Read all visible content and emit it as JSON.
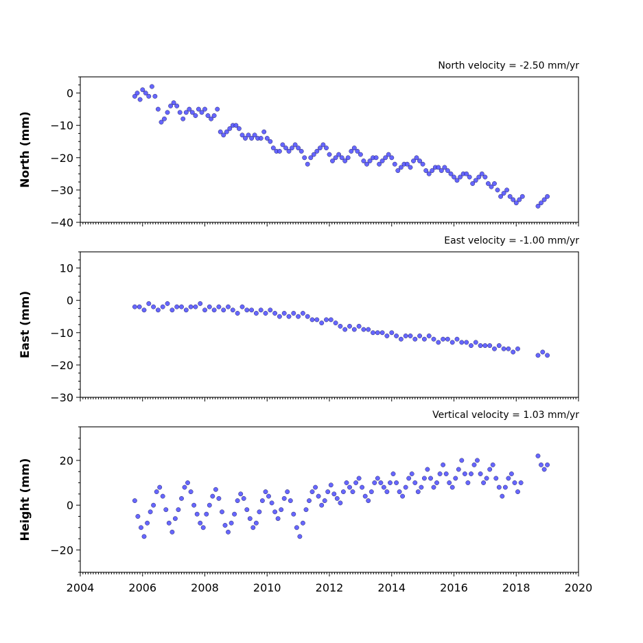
{
  "chart_data": [
    {
      "type": "scatter",
      "title": "",
      "annotation": "North velocity = -2.50 mm/yr",
      "xlabel": "",
      "ylabel": "North (mm)",
      "xlim": [
        2004,
        2020
      ],
      "ylim": [
        -40,
        5
      ],
      "yticks": [
        0,
        -10,
        -20,
        -30,
        -40
      ],
      "y_tick_labels": [
        "0",
        "−10",
        "−20",
        "−30",
        "−40"
      ],
      "marker_color": "#5555ff",
      "series": [
        {
          "x": [
            2005.75,
            2005.83,
            2005.92,
            2006.0,
            2006.1,
            2006.2,
            2006.3,
            2006.4,
            2006.5,
            2006.6,
            2006.7,
            2006.8,
            2006.9,
            2007.0,
            2007.1,
            2007.2,
            2007.3,
            2007.4,
            2007.5,
            2007.6,
            2007.7,
            2007.8,
            2007.9,
            2008.0,
            2008.1,
            2008.2,
            2008.3,
            2008.4,
            2008.5,
            2008.6,
            2008.7,
            2008.8,
            2008.9,
            2009.0,
            2009.1,
            2009.2,
            2009.3,
            2009.4,
            2009.5,
            2009.6,
            2009.7,
            2009.8,
            2009.9,
            2010.0,
            2010.1,
            2010.2,
            2010.3,
            2010.4,
            2010.5,
            2010.6,
            2010.7,
            2010.8,
            2010.9,
            2011.0,
            2011.1,
            2011.2,
            2011.3,
            2011.4,
            2011.5,
            2011.6,
            2011.7,
            2011.8,
            2011.9,
            2012.0,
            2012.1,
            2012.2,
            2012.3,
            2012.4,
            2012.5,
            2012.6,
            2012.7,
            2012.8,
            2012.9,
            2013.0,
            2013.1,
            2013.2,
            2013.3,
            2013.4,
            2013.5,
            2013.6,
            2013.7,
            2013.8,
            2013.9,
            2014.0,
            2014.1,
            2014.2,
            2014.3,
            2014.4,
            2014.5,
            2014.6,
            2014.7,
            2014.8,
            2014.9,
            2015.0,
            2015.1,
            2015.2,
            2015.3,
            2015.4,
            2015.5,
            2015.6,
            2015.7,
            2015.8,
            2015.9,
            2016.0,
            2016.1,
            2016.2,
            2016.3,
            2016.4,
            2016.5,
            2016.6,
            2016.7,
            2016.8,
            2016.9,
            2017.0,
            2017.1,
            2017.2,
            2017.3,
            2017.4,
            2017.5,
            2017.6,
            2017.7,
            2017.8,
            2017.9,
            2018.0,
            2018.1,
            2018.2,
            2018.7,
            2018.8,
            2018.9,
            2019.0
          ],
          "y": [
            -1,
            0,
            -2,
            1,
            0,
            -1,
            2,
            -1,
            -5,
            -9,
            -8,
            -6,
            -4,
            -3,
            -4,
            -6,
            -8,
            -6,
            -5,
            -6,
            -7,
            -5,
            -6,
            -5,
            -7,
            -8,
            -7,
            -5,
            -12,
            -13,
            -12,
            -11,
            -10,
            -10,
            -11,
            -13,
            -14,
            -13,
            -14,
            -13,
            -14,
            -14,
            -12,
            -14,
            -15,
            -17,
            -18,
            -18,
            -16,
            -17,
            -18,
            -17,
            -16,
            -17,
            -18,
            -20,
            -22,
            -20,
            -19,
            -18,
            -17,
            -16,
            -17,
            -19,
            -21,
            -20,
            -19,
            -20,
            -21,
            -20,
            -18,
            -17,
            -18,
            -19,
            -21,
            -22,
            -21,
            -20,
            -20,
            -22,
            -21,
            -20,
            -19,
            -20,
            -22,
            -24,
            -23,
            -22,
            -22,
            -23,
            -21,
            -20,
            -21,
            -22,
            -24,
            -25,
            -24,
            -23,
            -23,
            -24,
            -23,
            -24,
            -25,
            -26,
            -27,
            -26,
            -25,
            -25,
            -26,
            -28,
            -27,
            -26,
            -25,
            -26,
            -28,
            -29,
            -28,
            -30,
            -32,
            -31,
            -30,
            -32,
            -33,
            -34,
            -33,
            -32,
            -35,
            -34,
            -33,
            -32
          ]
        }
      ]
    },
    {
      "type": "scatter",
      "title": "",
      "annotation": "East velocity = -1.00 mm/yr",
      "xlabel": "",
      "ylabel": "East (mm)",
      "xlim": [
        2004,
        2020
      ],
      "ylim": [
        -30,
        15
      ],
      "yticks": [
        10,
        0,
        -10,
        -20,
        -30
      ],
      "y_tick_labels": [
        "10",
        "0",
        "−10",
        "−20",
        "−30"
      ],
      "marker_color": "#5555ff",
      "series": [
        {
          "x": [
            2005.75,
            2005.9,
            2006.05,
            2006.2,
            2006.35,
            2006.5,
            2006.65,
            2006.8,
            2006.95,
            2007.1,
            2007.25,
            2007.4,
            2007.55,
            2007.7,
            2007.85,
            2008.0,
            2008.15,
            2008.3,
            2008.45,
            2008.6,
            2008.75,
            2008.9,
            2009.05,
            2009.2,
            2009.35,
            2009.5,
            2009.65,
            2009.8,
            2009.95,
            2010.1,
            2010.25,
            2010.4,
            2010.55,
            2010.7,
            2010.85,
            2011.0,
            2011.15,
            2011.3,
            2011.45,
            2011.6,
            2011.75,
            2011.9,
            2012.05,
            2012.2,
            2012.35,
            2012.5,
            2012.65,
            2012.8,
            2012.95,
            2013.1,
            2013.25,
            2013.4,
            2013.55,
            2013.7,
            2013.85,
            2014.0,
            2014.15,
            2014.3,
            2014.45,
            2014.6,
            2014.75,
            2014.9,
            2015.05,
            2015.2,
            2015.35,
            2015.5,
            2015.65,
            2015.8,
            2015.95,
            2016.1,
            2016.25,
            2016.4,
            2016.55,
            2016.7,
            2016.85,
            2017.0,
            2017.15,
            2017.3,
            2017.45,
            2017.6,
            2017.75,
            2017.9,
            2018.05,
            2018.7,
            2018.85,
            2019.0
          ],
          "y": [
            -2,
            -2,
            -3,
            -1,
            -2,
            -3,
            -2,
            -1,
            -3,
            -2,
            -2,
            -3,
            -2,
            -2,
            -1,
            -3,
            -2,
            -3,
            -2,
            -3,
            -2,
            -3,
            -4,
            -2,
            -3,
            -3,
            -4,
            -3,
            -4,
            -3,
            -4,
            -5,
            -4,
            -5,
            -4,
            -5,
            -4,
            -5,
            -6,
            -6,
            -7,
            -6,
            -6,
            -7,
            -8,
            -9,
            -8,
            -9,
            -8,
            -9,
            -9,
            -10,
            -10,
            -10,
            -11,
            -10,
            -11,
            -12,
            -11,
            -11,
            -12,
            -11,
            -12,
            -11,
            -12,
            -13,
            -12,
            -12,
            -13,
            -12,
            -13,
            -13,
            -14,
            -13,
            -14,
            -14,
            -14,
            -15,
            -14,
            -15,
            -15,
            -16,
            -15,
            -17,
            -16,
            -17
          ]
        }
      ]
    },
    {
      "type": "scatter",
      "title": "",
      "annotation": "Vertical velocity = 1.03 mm/yr",
      "xlabel": "",
      "ylabel": "Height (mm)",
      "xlim": [
        2004,
        2020
      ],
      "ylim": [
        -30,
        35
      ],
      "xticks": [
        2004,
        2006,
        2008,
        2010,
        2012,
        2014,
        2016,
        2018,
        2020
      ],
      "x_tick_labels": [
        "2004",
        "2006",
        "2008",
        "2010",
        "2012",
        "2014",
        "2016",
        "2018",
        "2020"
      ],
      "yticks": [
        20,
        0,
        -20
      ],
      "y_tick_labels": [
        "20",
        "0",
        "−20"
      ],
      "marker_color": "#5555ff",
      "series": [
        {
          "x": [
            2005.75,
            2005.85,
            2005.95,
            2006.05,
            2006.15,
            2006.25,
            2006.35,
            2006.45,
            2006.55,
            2006.65,
            2006.75,
            2006.85,
            2006.95,
            2007.05,
            2007.15,
            2007.25,
            2007.35,
            2007.45,
            2007.55,
            2007.65,
            2007.75,
            2007.85,
            2007.95,
            2008.05,
            2008.15,
            2008.25,
            2008.35,
            2008.45,
            2008.55,
            2008.65,
            2008.75,
            2008.85,
            2008.95,
            2009.05,
            2009.15,
            2009.25,
            2009.35,
            2009.45,
            2009.55,
            2009.65,
            2009.75,
            2009.85,
            2009.95,
            2010.05,
            2010.15,
            2010.25,
            2010.35,
            2010.45,
            2010.55,
            2010.65,
            2010.75,
            2010.85,
            2010.95,
            2011.05,
            2011.15,
            2011.25,
            2011.35,
            2011.45,
            2011.55,
            2011.65,
            2011.75,
            2011.85,
            2011.95,
            2012.05,
            2012.15,
            2012.25,
            2012.35,
            2012.45,
            2012.55,
            2012.65,
            2012.75,
            2012.85,
            2012.95,
            2013.05,
            2013.15,
            2013.25,
            2013.35,
            2013.45,
            2013.55,
            2013.65,
            2013.75,
            2013.85,
            2013.95,
            2014.05,
            2014.15,
            2014.25,
            2014.35,
            2014.45,
            2014.55,
            2014.65,
            2014.75,
            2014.85,
            2014.95,
            2015.05,
            2015.15,
            2015.25,
            2015.35,
            2015.45,
            2015.55,
            2015.65,
            2015.75,
            2015.85,
            2015.95,
            2016.05,
            2016.15,
            2016.25,
            2016.35,
            2016.45,
            2016.55,
            2016.65,
            2016.75,
            2016.85,
            2016.95,
            2017.05,
            2017.15,
            2017.25,
            2017.35,
            2017.45,
            2017.55,
            2017.65,
            2017.75,
            2017.85,
            2017.95,
            2018.05,
            2018.15,
            2018.7,
            2018.8,
            2018.9,
            2019.0
          ],
          "y": [
            2,
            -5,
            -10,
            -14,
            -8,
            -3,
            0,
            6,
            8,
            4,
            -2,
            -8,
            -12,
            -6,
            -2,
            3,
            8,
            10,
            6,
            0,
            -4,
            -8,
            -10,
            -4,
            0,
            4,
            7,
            3,
            -3,
            -9,
            -12,
            -8,
            -4,
            2,
            5,
            3,
            -2,
            -6,
            -10,
            -8,
            -3,
            2,
            6,
            4,
            1,
            -3,
            -6,
            -2,
            3,
            6,
            2,
            -4,
            -10,
            -14,
            -8,
            -2,
            2,
            6,
            8,
            4,
            0,
            2,
            6,
            9,
            5,
            3,
            1,
            6,
            10,
            8,
            6,
            10,
            12,
            8,
            4,
            2,
            6,
            10,
            12,
            10,
            8,
            6,
            10,
            14,
            10,
            6,
            4,
            8,
            12,
            14,
            10,
            6,
            8,
            12,
            16,
            12,
            8,
            10,
            14,
            18,
            14,
            10,
            8,
            12,
            16,
            20,
            14,
            10,
            14,
            18,
            20,
            14,
            10,
            12,
            16,
            18,
            12,
            8,
            4,
            8,
            12,
            14,
            10,
            6,
            10,
            22,
            18,
            16,
            18
          ]
        }
      ]
    }
  ]
}
